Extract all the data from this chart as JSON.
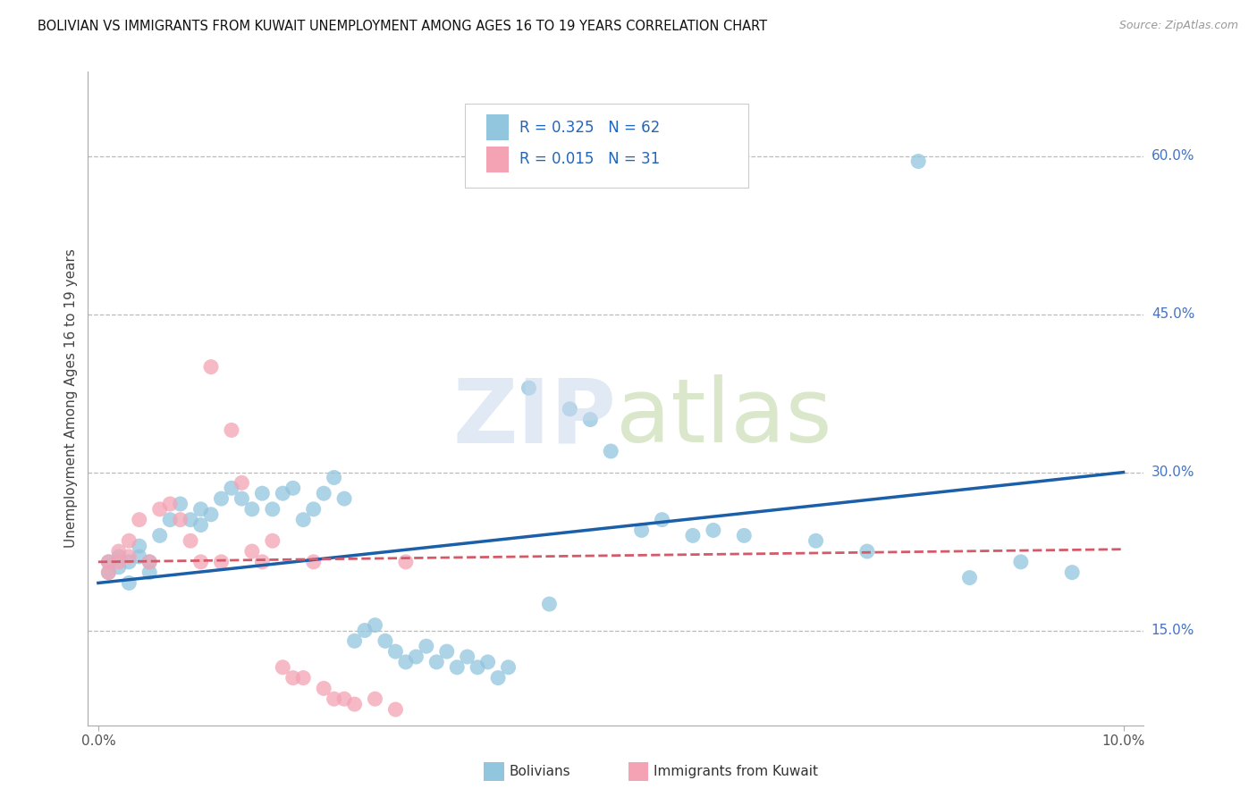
{
  "title": "BOLIVIAN VS IMMIGRANTS FROM KUWAIT UNEMPLOYMENT AMONG AGES 16 TO 19 YEARS CORRELATION CHART",
  "source": "Source: ZipAtlas.com",
  "ylabel": "Unemployment Among Ages 16 to 19 years",
  "y_ticks": [
    "15.0%",
    "30.0%",
    "45.0%",
    "60.0%"
  ],
  "y_tick_vals": [
    0.15,
    0.3,
    0.45,
    0.6
  ],
  "legend_label1": "Bolivians",
  "legend_label2": "Immigrants from Kuwait",
  "R1": "0.325",
  "N1": "62",
  "R2": "0.015",
  "N2": "31",
  "color_blue": "#92c5de",
  "color_pink": "#f4a3b5",
  "trendline_blue": "#1a5fa8",
  "trendline_pink": "#d45a6a",
  "blue_x": [
    0.001,
    0.001,
    0.002,
    0.002,
    0.003,
    0.003,
    0.004,
    0.004,
    0.005,
    0.005,
    0.006,
    0.007,
    0.008,
    0.009,
    0.01,
    0.01,
    0.011,
    0.012,
    0.013,
    0.014,
    0.015,
    0.016,
    0.017,
    0.018,
    0.019,
    0.02,
    0.021,
    0.022,
    0.023,
    0.024,
    0.025,
    0.026,
    0.027,
    0.028,
    0.029,
    0.03,
    0.031,
    0.032,
    0.033,
    0.034,
    0.035,
    0.036,
    0.037,
    0.038,
    0.039,
    0.04,
    0.042,
    0.044,
    0.046,
    0.048,
    0.05,
    0.053,
    0.055,
    0.058,
    0.06,
    0.063,
    0.07,
    0.075,
    0.08,
    0.085,
    0.09,
    0.095
  ],
  "blue_y": [
    0.205,
    0.215,
    0.21,
    0.22,
    0.195,
    0.215,
    0.22,
    0.23,
    0.205,
    0.215,
    0.24,
    0.255,
    0.27,
    0.255,
    0.265,
    0.25,
    0.26,
    0.275,
    0.285,
    0.275,
    0.265,
    0.28,
    0.265,
    0.28,
    0.285,
    0.255,
    0.265,
    0.28,
    0.295,
    0.275,
    0.14,
    0.15,
    0.155,
    0.14,
    0.13,
    0.12,
    0.125,
    0.135,
    0.12,
    0.13,
    0.115,
    0.125,
    0.115,
    0.12,
    0.105,
    0.115,
    0.38,
    0.175,
    0.36,
    0.35,
    0.32,
    0.245,
    0.255,
    0.24,
    0.245,
    0.24,
    0.235,
    0.225,
    0.595,
    0.2,
    0.215,
    0.205
  ],
  "pink_x": [
    0.001,
    0.001,
    0.002,
    0.002,
    0.003,
    0.003,
    0.004,
    0.005,
    0.006,
    0.007,
    0.008,
    0.009,
    0.01,
    0.011,
    0.012,
    0.013,
    0.014,
    0.015,
    0.016,
    0.017,
    0.018,
    0.019,
    0.02,
    0.021,
    0.022,
    0.023,
    0.024,
    0.025,
    0.027,
    0.029,
    0.03
  ],
  "pink_y": [
    0.205,
    0.215,
    0.215,
    0.225,
    0.22,
    0.235,
    0.255,
    0.215,
    0.265,
    0.27,
    0.255,
    0.235,
    0.215,
    0.4,
    0.215,
    0.34,
    0.29,
    0.225,
    0.215,
    0.235,
    0.115,
    0.105,
    0.105,
    0.215,
    0.095,
    0.085,
    0.085,
    0.08,
    0.085,
    0.075,
    0.215
  ],
  "xlim": [
    -0.001,
    0.102
  ],
  "ylim": [
    0.06,
    0.68
  ]
}
